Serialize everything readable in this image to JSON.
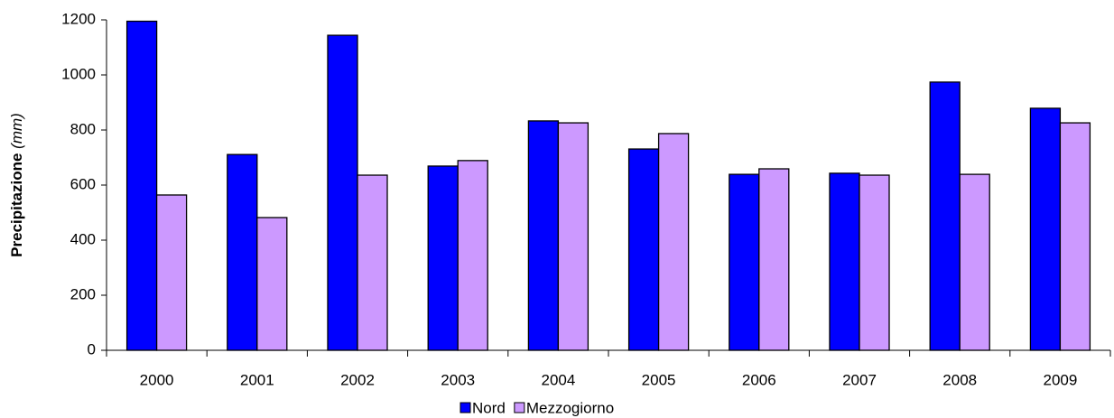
{
  "chart_data": {
    "type": "bar",
    "ylabel": "Precipitazione",
    "ylabel_unit": "(mm)",
    "categories": [
      "2000",
      "2001",
      "2002",
      "2003",
      "2004",
      "2005",
      "2006",
      "2007",
      "2008",
      "2009"
    ],
    "series": [
      {
        "name": "Nord",
        "color": "#0000ff",
        "values": [
          1195,
          711,
          1144,
          669,
          833,
          731,
          639,
          643,
          974,
          879
        ]
      },
      {
        "name": "Mezzogiorno",
        "color": "#cc99ff",
        "values": [
          564,
          482,
          636,
          689,
          826,
          787,
          659,
          636,
          639,
          826
        ]
      }
    ],
    "ylim": [
      0,
      1200
    ],
    "yticks": [
      0,
      200,
      400,
      600,
      800,
      1000,
      1200
    ],
    "grid": false,
    "legend": "bottom"
  }
}
